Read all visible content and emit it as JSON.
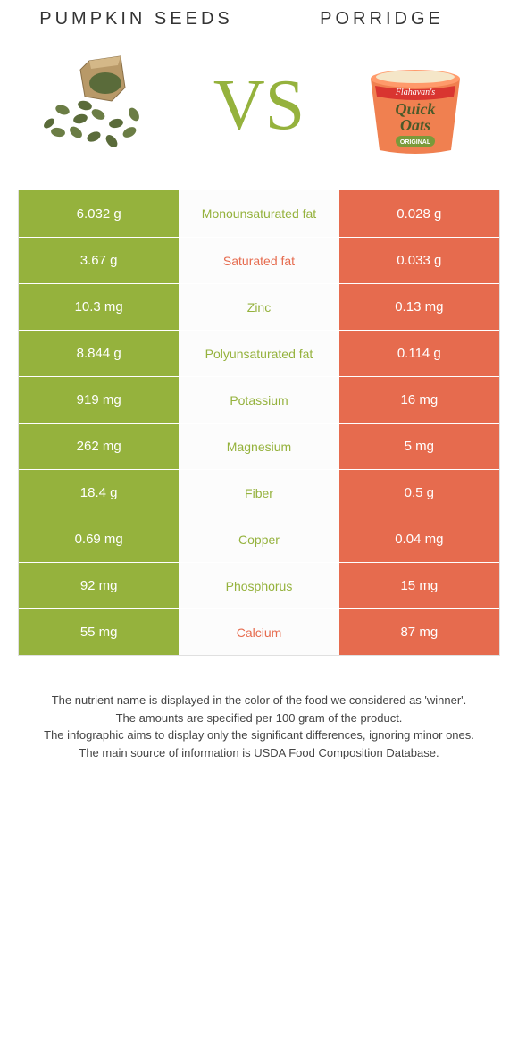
{
  "left_food": {
    "title": "Pumpkin seeds"
  },
  "right_food": {
    "title": "Porridge"
  },
  "vs_label": "VS",
  "colors": {
    "left": "#95b23d",
    "right": "#e66b4e",
    "mid_bg": "#fcfcfc"
  },
  "rows": [
    {
      "left": "6.032 g",
      "label": "Monounsaturated fat",
      "right": "0.028 g",
      "winner": "left"
    },
    {
      "left": "3.67 g",
      "label": "Saturated fat",
      "right": "0.033 g",
      "winner": "right"
    },
    {
      "left": "10.3 mg",
      "label": "Zinc",
      "right": "0.13 mg",
      "winner": "left"
    },
    {
      "left": "8.844 g",
      "label": "Polyunsaturated fat",
      "right": "0.114 g",
      "winner": "left"
    },
    {
      "left": "919 mg",
      "label": "Potassium",
      "right": "16 mg",
      "winner": "left"
    },
    {
      "left": "262 mg",
      "label": "Magnesium",
      "right": "5 mg",
      "winner": "left"
    },
    {
      "left": "18.4 g",
      "label": "Fiber",
      "right": "0.5 g",
      "winner": "left"
    },
    {
      "left": "0.69 mg",
      "label": "Copper",
      "right": "0.04 mg",
      "winner": "left"
    },
    {
      "left": "92 mg",
      "label": "Phosphorus",
      "right": "15 mg",
      "winner": "left"
    },
    {
      "left": "55 mg",
      "label": "Calcium",
      "right": "87 mg",
      "winner": "right"
    }
  ],
  "footnotes": [
    "The nutrient name is displayed in the color of the food we considered as 'winner'.",
    "The amounts are specified per 100 gram of the product.",
    "The infographic aims to display only the significant differences, ignoring minor ones.",
    "The main source of information is USDA Food Composition Database."
  ],
  "product_brand": "Flahavan's",
  "product_name_1": "Quick",
  "product_name_2": "Oats",
  "product_variant": "ORIGINAL"
}
